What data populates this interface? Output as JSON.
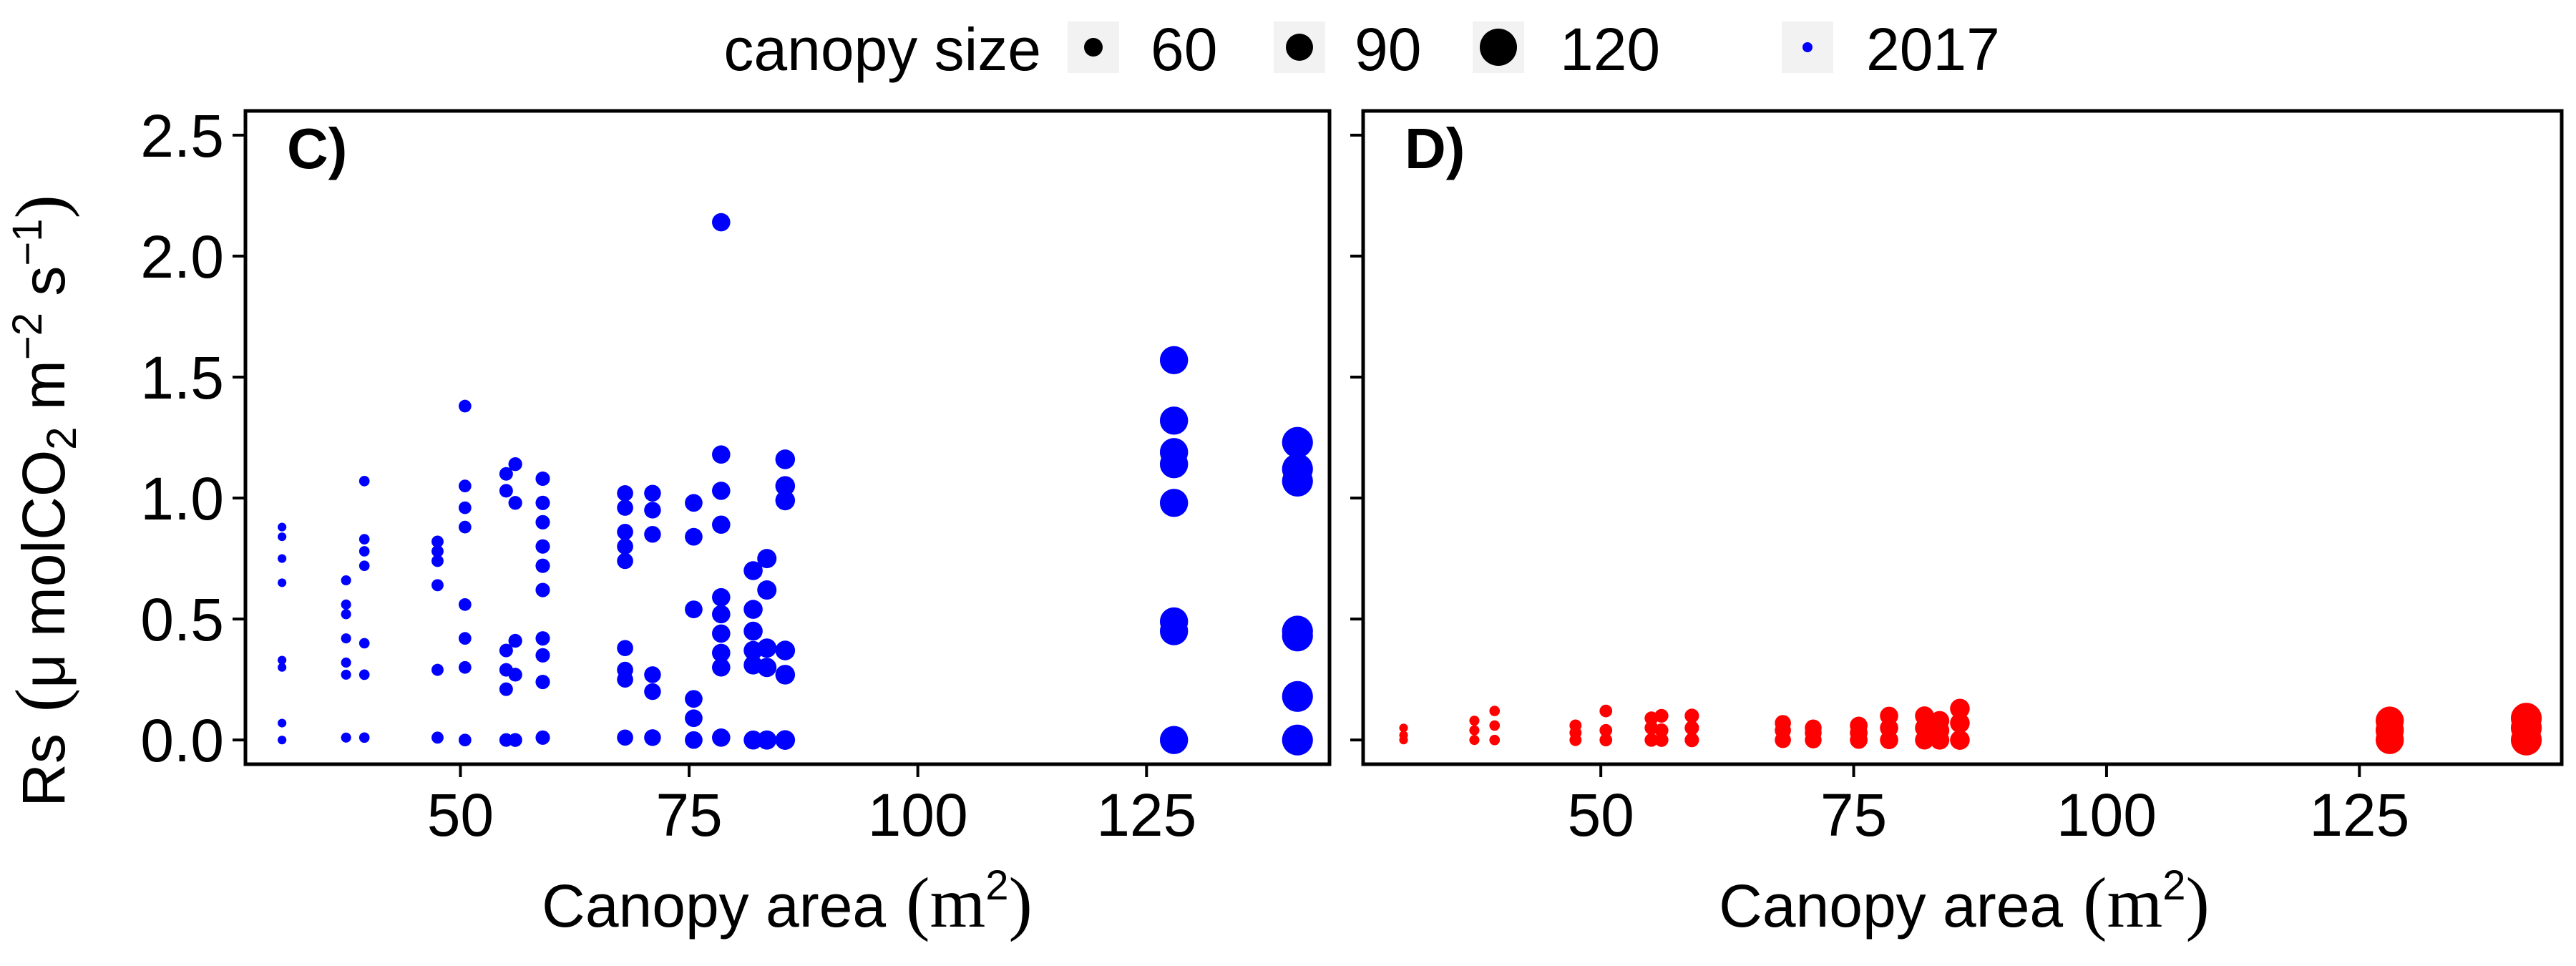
{
  "legend": {
    "title": "canopy size",
    "sizes": [
      {
        "label": "60",
        "value": 60
      },
      {
        "label": "90",
        "value": 90
      },
      {
        "label": "120",
        "value": 120
      }
    ],
    "year": "2017"
  },
  "y_axis": {
    "label_main": "Rs",
    "label_unit_prefix": "μ",
    "label_unit_mol": " molCO",
    "label_sub2": "2",
    "label_m": " m",
    "label_sup_m": "−2",
    "label_s": " s",
    "label_sup_s": "−1",
    "ticks": [
      "0.0",
      "0.5",
      "1.0",
      "1.5",
      "2.0",
      "2.5"
    ]
  },
  "x_axis": {
    "label": "Canopy area",
    "unit_open": "(m",
    "unit_sup": "2",
    "unit_close": ")",
    "ticks": [
      "50",
      "75",
      "100",
      "125"
    ]
  },
  "chart_data": [
    {
      "type": "scatter",
      "panel": "C)",
      "color": "#0000FF",
      "xlabel": "Canopy area (m2)",
      "ylabel": "Rs (μ molCO2 m−2 s−1)",
      "xlim": [
        26.5,
        145
      ],
      "ylim": [
        -0.1,
        2.6
      ],
      "grid": false,
      "points": [
        [
          30.5,
          0.0
        ],
        [
          30.5,
          0.07
        ],
        [
          30.5,
          0.3
        ],
        [
          30.5,
          0.33
        ],
        [
          30.5,
          0.65
        ],
        [
          30.5,
          0.75
        ],
        [
          30.5,
          0.84
        ],
        [
          30.5,
          0.88
        ],
        [
          37.5,
          0.01
        ],
        [
          37.5,
          0.27
        ],
        [
          37.5,
          0.32
        ],
        [
          37.5,
          0.42
        ],
        [
          37.5,
          0.52
        ],
        [
          37.5,
          0.56
        ],
        [
          37.5,
          0.66
        ],
        [
          39.5,
          0.01
        ],
        [
          39.5,
          0.27
        ],
        [
          39.5,
          0.4
        ],
        [
          39.5,
          0.72
        ],
        [
          39.5,
          0.78
        ],
        [
          39.5,
          0.83
        ],
        [
          39.5,
          1.07
        ],
        [
          47.5,
          0.01
        ],
        [
          47.5,
          0.29
        ],
        [
          47.5,
          0.64
        ],
        [
          47.5,
          0.74
        ],
        [
          47.5,
          0.78
        ],
        [
          47.5,
          0.82
        ],
        [
          50.5,
          0.0
        ],
        [
          50.5,
          0.3
        ],
        [
          50.5,
          0.42
        ],
        [
          50.5,
          0.56
        ],
        [
          50.5,
          0.88
        ],
        [
          50.5,
          0.96
        ],
        [
          50.5,
          1.05
        ],
        [
          50.5,
          1.38
        ],
        [
          55.0,
          0.0
        ],
        [
          55.0,
          0.21
        ],
        [
          55.0,
          0.29
        ],
        [
          55.0,
          0.37
        ],
        [
          55.0,
          1.03
        ],
        [
          55.0,
          1.1
        ],
        [
          56.0,
          0.0
        ],
        [
          56.0,
          0.27
        ],
        [
          56.0,
          0.41
        ],
        [
          56.0,
          0.98
        ],
        [
          56.0,
          1.14
        ],
        [
          59.0,
          0.01
        ],
        [
          59.0,
          0.24
        ],
        [
          59.0,
          0.35
        ],
        [
          59.0,
          0.42
        ],
        [
          59.0,
          0.62
        ],
        [
          59.0,
          0.72
        ],
        [
          59.0,
          0.8
        ],
        [
          59.0,
          0.9
        ],
        [
          59.0,
          0.98
        ],
        [
          59.0,
          1.08
        ],
        [
          68.0,
          0.01
        ],
        [
          68.0,
          0.25
        ],
        [
          68.0,
          0.29
        ],
        [
          68.0,
          0.38
        ],
        [
          68.0,
          0.74
        ],
        [
          68.0,
          0.8
        ],
        [
          68.0,
          0.86
        ],
        [
          68.0,
          0.96
        ],
        [
          68.0,
          1.02
        ],
        [
          71.0,
          0.01
        ],
        [
          71.0,
          0.2
        ],
        [
          71.0,
          0.27
        ],
        [
          71.0,
          0.85
        ],
        [
          71.0,
          0.95
        ],
        [
          71.0,
          1.02
        ],
        [
          75.5,
          0.0
        ],
        [
          75.5,
          0.09
        ],
        [
          75.5,
          0.17
        ],
        [
          75.5,
          0.54
        ],
        [
          75.5,
          0.84
        ],
        [
          75.5,
          0.98
        ],
        [
          78.5,
          0.01
        ],
        [
          78.5,
          0.3
        ],
        [
          78.5,
          0.36
        ],
        [
          78.5,
          0.44
        ],
        [
          78.5,
          0.52
        ],
        [
          78.5,
          0.59
        ],
        [
          78.5,
          0.89
        ],
        [
          78.5,
          1.03
        ],
        [
          78.5,
          1.18
        ],
        [
          78.5,
          2.14
        ],
        [
          82.0,
          0.0
        ],
        [
          82.0,
          0.31
        ],
        [
          82.0,
          0.37
        ],
        [
          82.0,
          0.45
        ],
        [
          82.0,
          0.54
        ],
        [
          82.0,
          0.7
        ],
        [
          83.5,
          0.0
        ],
        [
          83.5,
          0.3
        ],
        [
          83.5,
          0.38
        ],
        [
          83.5,
          0.62
        ],
        [
          83.5,
          0.75
        ],
        [
          85.5,
          0.0
        ],
        [
          85.5,
          0.27
        ],
        [
          85.5,
          0.37
        ],
        [
          85.5,
          0.99
        ],
        [
          85.5,
          1.05
        ],
        [
          85.5,
          1.16
        ],
        [
          128.0,
          0.0
        ],
        [
          128.0,
          0.45
        ],
        [
          128.0,
          0.49
        ],
        [
          128.0,
          0.98
        ],
        [
          128.0,
          1.14
        ],
        [
          128.0,
          1.19
        ],
        [
          128.0,
          1.32
        ],
        [
          128.0,
          1.57
        ],
        [
          141.5,
          0.0
        ],
        [
          141.5,
          0.18
        ],
        [
          141.5,
          0.43
        ],
        [
          141.5,
          0.45
        ],
        [
          141.5,
          1.07
        ],
        [
          141.5,
          1.12
        ],
        [
          141.5,
          1.23
        ]
      ]
    },
    {
      "type": "scatter",
      "panel": "D)",
      "color": "#FF0000",
      "xlabel": "Canopy area (m2)",
      "xlim": [
        26.5,
        145
      ],
      "ylim": [
        -0.1,
        2.6
      ],
      "grid": false,
      "points": [
        [
          30.5,
          0.0
        ],
        [
          30.5,
          0.02
        ],
        [
          30.5,
          0.05
        ],
        [
          37.5,
          0.0
        ],
        [
          37.5,
          0.04
        ],
        [
          37.5,
          0.08
        ],
        [
          39.5,
          0.0
        ],
        [
          39.5,
          0.06
        ],
        [
          39.5,
          0.12
        ],
        [
          47.5,
          0.0
        ],
        [
          47.5,
          0.03
        ],
        [
          47.5,
          0.06
        ],
        [
          50.5,
          0.0
        ],
        [
          50.5,
          0.04
        ],
        [
          50.5,
          0.12
        ],
        [
          55.0,
          0.0
        ],
        [
          55.0,
          0.05
        ],
        [
          55.0,
          0.09
        ],
        [
          56.0,
          0.0
        ],
        [
          56.0,
          0.04
        ],
        [
          56.0,
          0.1
        ],
        [
          59.0,
          0.0
        ],
        [
          59.0,
          0.05
        ],
        [
          59.0,
          0.1
        ],
        [
          68.0,
          0.0
        ],
        [
          68.0,
          0.04
        ],
        [
          68.0,
          0.07
        ],
        [
          71.0,
          0.0
        ],
        [
          71.0,
          0.03
        ],
        [
          71.0,
          0.05
        ],
        [
          75.5,
          0.0
        ],
        [
          75.5,
          0.03
        ],
        [
          75.5,
          0.06
        ],
        [
          78.5,
          0.0
        ],
        [
          78.5,
          0.05
        ],
        [
          78.5,
          0.1
        ],
        [
          82.0,
          0.0
        ],
        [
          82.0,
          0.05
        ],
        [
          82.0,
          0.1
        ],
        [
          83.5,
          0.0
        ],
        [
          83.5,
          0.04
        ],
        [
          83.5,
          0.08
        ],
        [
          85.5,
          0.0
        ],
        [
          85.5,
          0.07
        ],
        [
          85.5,
          0.13
        ],
        [
          128.0,
          0.0
        ],
        [
          128.0,
          0.04
        ],
        [
          128.0,
          0.08
        ],
        [
          141.5,
          0.0
        ],
        [
          141.5,
          0.05
        ],
        [
          141.5,
          0.09
        ]
      ]
    }
  ]
}
